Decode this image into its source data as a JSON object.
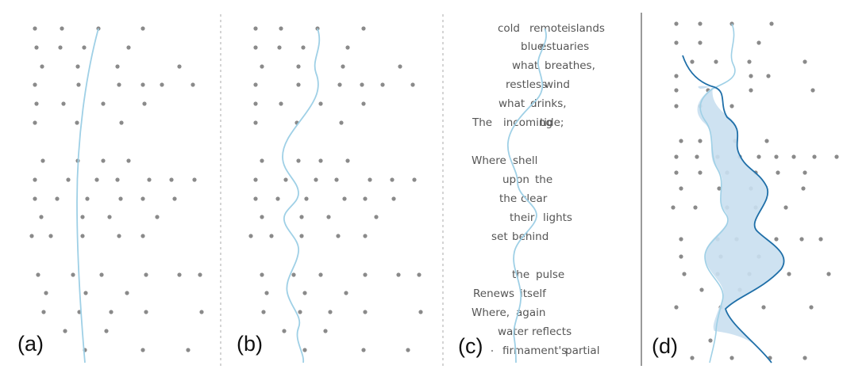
{
  "panels": [
    {
      "label": "(a)"
    },
    {
      "label": "(b)"
    },
    {
      "label": "(c)"
    },
    {
      "label": "(d)"
    }
  ],
  "colors": {
    "dot": "#8a8a8a",
    "curve_light": "#9fd0e6",
    "curve_dark": "#1f6fa8",
    "band_fill": "#c9dff0",
    "text": "#555555",
    "divider_dashed": "#a9a9a9",
    "divider_solid": "#9a9a9a"
  },
  "poem_lines": [
    [
      "cold",
      "remote",
      "islands"
    ],
    [
      "blue",
      "estuaries"
    ],
    [
      "what",
      "breathes,"
    ],
    [
      "restless",
      "wind"
    ],
    [
      "what",
      "drinks,"
    ],
    [
      "The",
      "incoming",
      "tide;"
    ],
    [],
    [
      "Where",
      "shell"
    ],
    [
      "upon",
      "the"
    ],
    [
      "the",
      "clear"
    ],
    [
      "their",
      "lights"
    ],
    [
      "set",
      "behind"
    ],
    [],
    [
      "the",
      "pulse"
    ],
    [
      "Renews",
      "itself"
    ],
    [
      "Where,",
      "again"
    ],
    [
      "water",
      "reflects"
    ],
    [
      "firmament's",
      "partial"
    ]
  ]
}
